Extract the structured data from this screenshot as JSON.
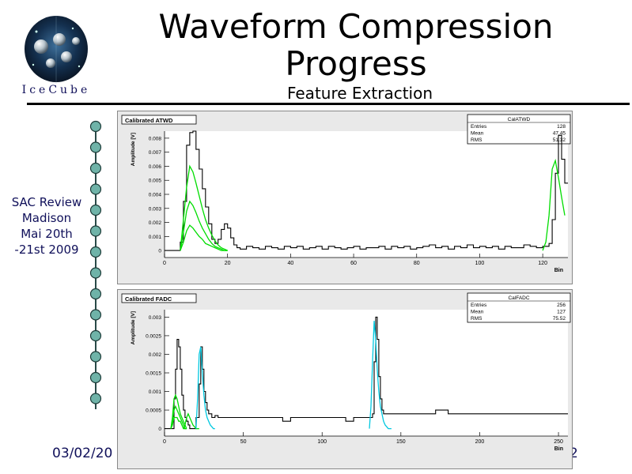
{
  "slide": {
    "title_line1": "Waveform Compression",
    "title_line2": "Progress",
    "subtitle": "Feature Extraction",
    "sidebar_text": [
      "SAC Review",
      "Madison",
      "Mai 20th",
      "-21st  2009"
    ],
    "date": "03/02/20",
    "page_number": "2",
    "logo_text": "IceCube"
  },
  "colors": {
    "text_navy": "#10105a",
    "green": "#00dd00",
    "cyan": "#00c8e0",
    "bead": "#6fb3a8"
  },
  "chart_data": [
    {
      "type": "line",
      "panel_label": "Calibrated ATWD",
      "stats": {
        "title": "CalATWD",
        "rows": [
          [
            "Entries",
            "128"
          ],
          [
            "Mean",
            "47.45"
          ],
          [
            "RMS",
            "51.32"
          ]
        ]
      },
      "xlabel": "Bin",
      "ylabel": "Amplitude [V]",
      "xlim": [
        0,
        128
      ],
      "ylim": [
        -0.0005,
        0.0085
      ],
      "xticks": [
        0,
        20,
        40,
        60,
        80,
        100,
        120
      ],
      "yticks": [
        0,
        0.001,
        0.002,
        0.003,
        0.004,
        0.005,
        0.006,
        0.007,
        0.008
      ],
      "ytick_labels": [
        "0",
        "0.001",
        "0.002",
        "0.003",
        "0.004",
        "0.005",
        "0.006",
        "0.007",
        "0.008"
      ],
      "series": [
        {
          "style": "step",
          "color": "#000000",
          "x": [
            0,
            3,
            5,
            6,
            7,
            8,
            9,
            10,
            11,
            12,
            13,
            14,
            15,
            16,
            17,
            18,
            19,
            20,
            21,
            22,
            23,
            24,
            26,
            28,
            30,
            32,
            34,
            36,
            38,
            40,
            42,
            44,
            46,
            48,
            50,
            52,
            54,
            56,
            58,
            60,
            62,
            64,
            66,
            68,
            70,
            72,
            74,
            76,
            78,
            80,
            82,
            84,
            86,
            88,
            90,
            92,
            94,
            96,
            98,
            100,
            102,
            104,
            106,
            108,
            110,
            112,
            114,
            116,
            118,
            120,
            122,
            123,
            124,
            125,
            126,
            127
          ],
          "y": [
            0,
            0,
            0.0006,
            0.0035,
            0.0075,
            0.0084,
            0.0085,
            0.0072,
            0.0058,
            0.0044,
            0.0031,
            0.0019,
            0.0008,
            0.0005,
            0.0008,
            0.0015,
            0.0019,
            0.0016,
            0.0009,
            0.0004,
            0.0002,
            0.0001,
            0.0003,
            0.0002,
            0.0001,
            0.0003,
            0.0002,
            0.0001,
            0.0003,
            0.0002,
            0.0003,
            0.0001,
            0.0002,
            0.0003,
            0.0001,
            0.0003,
            0.0002,
            0.0001,
            0.0002,
            0.0003,
            0.0001,
            0.0002,
            0.0002,
            0.0003,
            0.0001,
            0.0003,
            0.0002,
            0.0003,
            0.0001,
            0.0002,
            0.0003,
            0.0004,
            0.0002,
            0.0003,
            0.0001,
            0.0003,
            0.0002,
            0.0004,
            0.0002,
            0.0003,
            0.0002,
            0.0003,
            0.0001,
            0.0003,
            0.0002,
            0.0002,
            0.0004,
            0.0003,
            0.0002,
            0.0003,
            0.0005,
            0.0022,
            0.0055,
            0.0082,
            0.0065,
            0.0048
          ]
        },
        {
          "style": "curve",
          "color": "#00dd00",
          "x": [
            5,
            6,
            7,
            8,
            9,
            10,
            11,
            12,
            13,
            14,
            15,
            16,
            17,
            18,
            19,
            20
          ],
          "y": [
            0,
            0.0022,
            0.0045,
            0.006,
            0.0056,
            0.0048,
            0.0039,
            0.003,
            0.0022,
            0.0016,
            0.0011,
            0.0007,
            0.0004,
            0.0002,
            0.0001,
            0
          ]
        },
        {
          "style": "curve",
          "color": "#00dd00",
          "x": [
            5,
            6,
            7,
            8,
            9,
            10,
            11,
            12,
            13,
            14,
            15,
            16,
            17,
            18,
            19,
            20
          ],
          "y": [
            0,
            0.0013,
            0.0028,
            0.0035,
            0.0032,
            0.0027,
            0.0021,
            0.0016,
            0.0012,
            0.0008,
            0.0005,
            0.0003,
            0.0002,
            0.0001,
            0,
            0
          ]
        },
        {
          "style": "curve",
          "color": "#00dd00",
          "x": [
            5,
            6,
            7,
            8,
            9,
            10,
            11,
            12,
            13,
            14,
            15,
            16,
            17,
            18,
            19,
            20
          ],
          "y": [
            0,
            0.0006,
            0.0014,
            0.0018,
            0.0016,
            0.0013,
            0.001,
            0.0008,
            0.0005,
            0.0004,
            0.0003,
            0.0002,
            0.0001,
            0,
            0,
            0
          ]
        },
        {
          "style": "curve",
          "color": "#00dd00",
          "x": [
            120,
            121,
            122,
            123,
            124,
            125,
            126,
            127
          ],
          "y": [
            0,
            0.0006,
            0.0025,
            0.0058,
            0.0064,
            0.0052,
            0.0038,
            0.0025
          ]
        }
      ]
    },
    {
      "type": "line",
      "panel_label": "Calibrated FADC",
      "stats": {
        "title": "CalFADC",
        "rows": [
          [
            "Entries",
            "256"
          ],
          [
            "Mean",
            "127"
          ],
          [
            "RMS",
            "75.52"
          ]
        ]
      },
      "xlabel": "Bin",
      "ylabel": "Amplitude [V]",
      "xlim": [
        0,
        256
      ],
      "ylim": [
        -0.0002,
        0.0032
      ],
      "xticks": [
        0,
        50,
        100,
        150,
        200,
        250
      ],
      "yticks": [
        0,
        0.0005,
        0.001,
        0.0015,
        0.002,
        0.0025,
        0.003
      ],
      "ytick_labels": [
        "0",
        "0.0005",
        "0.001",
        "0.0015",
        "0.002",
        "0.0025",
        "0.003"
      ],
      "series": [
        {
          "style": "step",
          "color": "#000000",
          "x": [
            0,
            4,
            6,
            7,
            8,
            9,
            10,
            11,
            12,
            13,
            14,
            15,
            16,
            17,
            18,
            20,
            22,
            23,
            24,
            25,
            26,
            27,
            28,
            30,
            32,
            34,
            36,
            40,
            50,
            60,
            70,
            75,
            80,
            90,
            100,
            110,
            115,
            120,
            125,
            130,
            132,
            133,
            134,
            135,
            136,
            137,
            138,
            139,
            140,
            145,
            150,
            160,
            170,
            172,
            180,
            190,
            200,
            210,
            220,
            230,
            240,
            250,
            255
          ],
          "y": [
            0,
            0,
            0.0008,
            0.0016,
            0.0024,
            0.0022,
            0.0016,
            0.0009,
            0.0005,
            0.0003,
            0.0002,
            0.0001,
            0,
            0,
            0,
            0.0003,
            0.0012,
            0.0022,
            0.0016,
            0.001,
            0.0007,
            0.0005,
            0.0004,
            0.0003,
            0.00035,
            0.0003,
            0.0003,
            0.0003,
            0.0003,
            0.0003,
            0.0003,
            0.0002,
            0.0003,
            0.0003,
            0.0003,
            0.0003,
            0.0002,
            0.0003,
            0.0003,
            0.0003,
            0.0004,
            0.0018,
            0.003,
            0.0024,
            0.0014,
            0.0008,
            0.0005,
            0.0004,
            0.0004,
            0.0004,
            0.0004,
            0.0004,
            0.0004,
            0.0005,
            0.0004,
            0.0004,
            0.0004,
            0.0004,
            0.0004,
            0.0004,
            0.0004,
            0.0004,
            0.0004
          ]
        },
        {
          "style": "curve",
          "color": "#00dd00",
          "x": [
            4,
            5,
            6,
            7,
            8,
            9,
            10,
            11,
            12,
            13,
            14
          ],
          "y": [
            0,
            0.0003,
            0.0008,
            0.0009,
            0.0008,
            0.0006,
            0.0004,
            0.0003,
            0.0002,
            0.0001,
            0
          ]
        },
        {
          "style": "curve",
          "color": "#00dd00",
          "x": [
            4,
            5,
            6,
            7,
            8,
            9,
            10,
            11,
            12,
            13,
            14
          ],
          "y": [
            0,
            0.0002,
            0.0005,
            0.0006,
            0.0005,
            0.0004,
            0.0003,
            0.0002,
            0.0001,
            0,
            0
          ]
        },
        {
          "style": "curve",
          "color": "#00dd00",
          "x": [
            4,
            5,
            6,
            7,
            8,
            9,
            10,
            11,
            12,
            13,
            14
          ],
          "y": [
            0,
            0.0001,
            0.0003,
            0.0003,
            0.0003,
            0.0002,
            0.0002,
            0.0001,
            0,
            0,
            0
          ]
        },
        {
          "style": "curve",
          "color": "#00dd00",
          "x": [
            12,
            13,
            14,
            15,
            16,
            17,
            18,
            19,
            20,
            21,
            22
          ],
          "y": [
            0,
            0.0001,
            0.0003,
            0.0004,
            0.0003,
            0.0002,
            0.0001,
            5e-05,
            0,
            0,
            0
          ]
        },
        {
          "style": "curve",
          "color": "#00c8e0",
          "x": [
            20,
            21,
            22,
            23,
            24,
            25,
            26,
            27,
            28,
            29,
            30,
            31,
            32
          ],
          "y": [
            0,
            0.0008,
            0.002,
            0.0022,
            0.0015,
            0.0009,
            0.0005,
            0.0003,
            0.0002,
            0.0001,
            5e-05,
            0,
            0
          ]
        },
        {
          "style": "curve",
          "color": "#00c8e0",
          "x": [
            130,
            131,
            132,
            133,
            134,
            135,
            136,
            137,
            138,
            139,
            140,
            141,
            142,
            143,
            144
          ],
          "y": [
            0,
            0.0006,
            0.0018,
            0.0029,
            0.0024,
            0.0016,
            0.001,
            0.0006,
            0.0004,
            0.0002,
            0.0001,
            5e-05,
            0,
            0,
            0
          ]
        }
      ]
    }
  ]
}
